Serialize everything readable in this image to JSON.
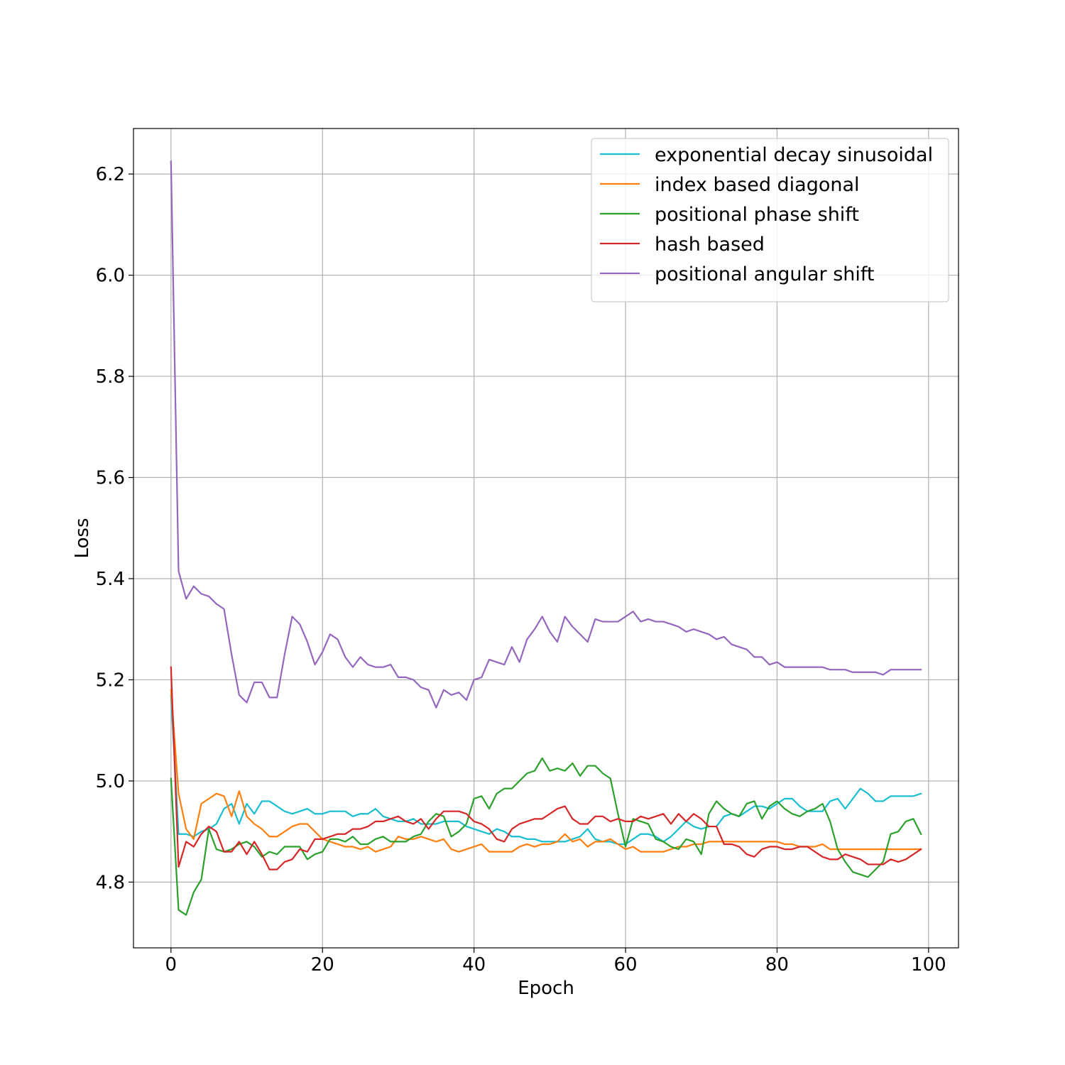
{
  "chart_data": {
    "type": "line",
    "title": "",
    "xlabel": "Epoch",
    "ylabel": "Loss",
    "xlim": [
      -4.95,
      103.95
    ],
    "ylim": [
      4.67,
      6.29
    ],
    "xticks": [
      0,
      20,
      40,
      60,
      80,
      100
    ],
    "xtick_labels": [
      "0",
      "20",
      "40",
      "60",
      "80",
      "100"
    ],
    "yticks": [
      4.8,
      5.0,
      5.2,
      5.4,
      5.6,
      5.8,
      6.0,
      6.2
    ],
    "ytick_labels": [
      "4.8",
      "5.0",
      "5.2",
      "5.4",
      "5.6",
      "5.8",
      "6.0",
      "6.2"
    ],
    "grid": true,
    "legend_position": "top-right",
    "series": [
      {
        "name": "exponential decay sinusoidal",
        "color": "#17becf",
        "values": [
          5.17,
          4.895,
          4.895,
          4.89,
          4.9,
          4.905,
          4.915,
          4.945,
          4.955,
          4.915,
          4.955,
          4.935,
          4.96,
          4.96,
          4.95,
          4.94,
          4.935,
          4.94,
          4.945,
          4.935,
          4.935,
          4.94,
          4.94,
          4.94,
          4.93,
          4.935,
          4.935,
          4.945,
          4.93,
          4.925,
          4.92,
          4.92,
          4.925,
          4.915,
          4.915,
          4.915,
          4.92,
          4.92,
          4.92,
          4.91,
          4.905,
          4.9,
          4.895,
          4.905,
          4.9,
          4.89,
          4.89,
          4.885,
          4.885,
          4.88,
          4.88,
          4.88,
          4.88,
          4.885,
          4.89,
          4.905,
          4.885,
          4.88,
          4.88,
          4.875,
          4.875,
          4.885,
          4.895,
          4.895,
          4.89,
          4.88,
          4.89,
          4.905,
          4.92,
          4.91,
          4.905,
          4.91,
          4.91,
          4.93,
          4.935,
          4.93,
          4.94,
          4.95,
          4.95,
          4.945,
          4.955,
          4.965,
          4.965,
          4.95,
          4.94,
          4.94,
          4.94,
          4.96,
          4.965,
          4.945,
          4.965,
          4.985,
          4.975,
          4.96,
          4.96,
          4.97,
          4.97,
          4.97,
          4.97,
          4.975
        ]
      },
      {
        "name": "index based diagonal",
        "color": "#ff7f0e",
        "values": [
          5.18,
          4.975,
          4.905,
          4.885,
          4.955,
          4.965,
          4.975,
          4.97,
          4.93,
          4.98,
          4.93,
          4.915,
          4.905,
          4.89,
          4.89,
          4.9,
          4.91,
          4.915,
          4.915,
          4.9,
          4.885,
          4.88,
          4.875,
          4.87,
          4.87,
          4.865,
          4.87,
          4.86,
          4.865,
          4.87,
          4.89,
          4.885,
          4.885,
          4.89,
          4.885,
          4.88,
          4.885,
          4.865,
          4.86,
          4.865,
          4.87,
          4.875,
          4.86,
          4.86,
          4.86,
          4.86,
          4.87,
          4.875,
          4.87,
          4.875,
          4.875,
          4.88,
          4.895,
          4.88,
          4.885,
          4.87,
          4.88,
          4.88,
          4.885,
          4.875,
          4.865,
          4.87,
          4.86,
          4.86,
          4.86,
          4.86,
          4.865,
          4.87,
          4.87,
          4.875,
          4.875,
          4.88,
          4.88,
          4.88,
          4.88,
          4.88,
          4.88,
          4.88,
          4.88,
          4.88,
          4.88,
          4.875,
          4.875,
          4.87,
          4.87,
          4.87,
          4.875,
          4.865,
          4.865,
          4.865,
          4.865,
          4.865,
          4.865,
          4.865,
          4.865,
          4.865,
          4.865,
          4.865,
          4.865,
          4.865
        ]
      },
      {
        "name": "positional phase shift",
        "color": "#2ca02c",
        "values": [
          5.005,
          4.745,
          4.735,
          4.78,
          4.805,
          4.905,
          4.865,
          4.86,
          4.865,
          4.875,
          4.88,
          4.87,
          4.85,
          4.86,
          4.855,
          4.87,
          4.87,
          4.87,
          4.845,
          4.855,
          4.86,
          4.885,
          4.885,
          4.88,
          4.89,
          4.875,
          4.875,
          4.885,
          4.89,
          4.88,
          4.88,
          4.88,
          4.89,
          4.895,
          4.92,
          4.935,
          4.93,
          4.89,
          4.9,
          4.915,
          4.965,
          4.97,
          4.945,
          4.975,
          4.985,
          4.985,
          5.0,
          5.015,
          5.02,
          5.045,
          5.02,
          5.025,
          5.02,
          5.035,
          5.01,
          5.03,
          5.03,
          5.015,
          5.005,
          4.935,
          4.87,
          4.925,
          4.92,
          4.915,
          4.885,
          4.88,
          4.87,
          4.865,
          4.885,
          4.88,
          4.855,
          4.935,
          4.96,
          4.945,
          4.935,
          4.93,
          4.955,
          4.96,
          4.925,
          4.95,
          4.96,
          4.945,
          4.935,
          4.93,
          4.94,
          4.945,
          4.955,
          4.92,
          4.865,
          4.84,
          4.82,
          4.815,
          4.81,
          4.825,
          4.84,
          4.895,
          4.9,
          4.92,
          4.925,
          4.895
        ]
      },
      {
        "name": "hash based",
        "color": "#d62728",
        "values": [
          5.225,
          4.83,
          4.88,
          4.87,
          4.895,
          4.91,
          4.9,
          4.86,
          4.86,
          4.88,
          4.855,
          4.88,
          4.855,
          4.825,
          4.825,
          4.84,
          4.845,
          4.865,
          4.86,
          4.885,
          4.885,
          4.89,
          4.895,
          4.895,
          4.905,
          4.905,
          4.91,
          4.92,
          4.92,
          4.925,
          4.93,
          4.92,
          4.915,
          4.925,
          4.905,
          4.925,
          4.94,
          4.94,
          4.94,
          4.935,
          4.92,
          4.915,
          4.905,
          4.885,
          4.88,
          4.905,
          4.915,
          4.92,
          4.925,
          4.925,
          4.935,
          4.945,
          4.95,
          4.925,
          4.915,
          4.915,
          4.93,
          4.93,
          4.92,
          4.925,
          4.92,
          4.92,
          4.93,
          4.925,
          4.93,
          4.935,
          4.915,
          4.935,
          4.92,
          4.935,
          4.925,
          4.91,
          4.91,
          4.875,
          4.875,
          4.87,
          4.855,
          4.85,
          4.865,
          4.87,
          4.87,
          4.865,
          4.865,
          4.87,
          4.87,
          4.86,
          4.85,
          4.845,
          4.845,
          4.855,
          4.85,
          4.845,
          4.835,
          4.835,
          4.835,
          4.845,
          4.84,
          4.845,
          4.855,
          4.865
        ]
      },
      {
        "name": "positional angular shift",
        "color": "#9467bd",
        "values": [
          6.225,
          5.415,
          5.36,
          5.385,
          5.37,
          5.365,
          5.35,
          5.34,
          5.25,
          5.17,
          5.155,
          5.195,
          5.195,
          5.165,
          5.165,
          5.25,
          5.325,
          5.31,
          5.275,
          5.23,
          5.255,
          5.29,
          5.28,
          5.245,
          5.225,
          5.245,
          5.23,
          5.225,
          5.225,
          5.23,
          5.205,
          5.205,
          5.2,
          5.185,
          5.18,
          5.145,
          5.18,
          5.17,
          5.175,
          5.16,
          5.2,
          5.205,
          5.24,
          5.235,
          5.23,
          5.265,
          5.235,
          5.28,
          5.3,
          5.325,
          5.295,
          5.275,
          5.325,
          5.305,
          5.29,
          5.275,
          5.32,
          5.315,
          5.315,
          5.315,
          5.325,
          5.335,
          5.315,
          5.32,
          5.315,
          5.315,
          5.31,
          5.305,
          5.295,
          5.3,
          5.295,
          5.29,
          5.28,
          5.285,
          5.27,
          5.265,
          5.26,
          5.245,
          5.245,
          5.23,
          5.235,
          5.225,
          5.225,
          5.225,
          5.225,
          5.225,
          5.225,
          5.22,
          5.22,
          5.22,
          5.215,
          5.215,
          5.215,
          5.215,
          5.21,
          5.22,
          5.22,
          5.22,
          5.22,
          5.22
        ]
      }
    ]
  }
}
